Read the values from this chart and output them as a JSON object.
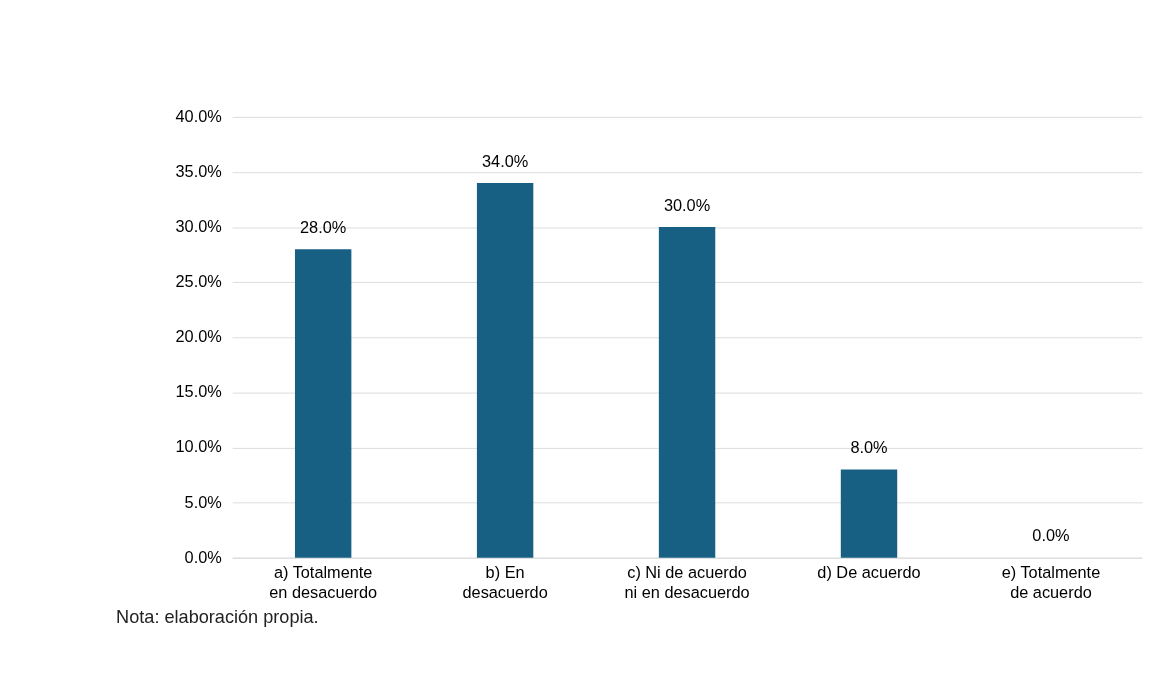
{
  "chart_data": {
    "type": "bar",
    "categories": [
      "a)    Totalmente\nen desacuerdo",
      "b)    En\ndesacuerdo",
      "c)    Ni de acuerdo\nni en desacuerdo",
      "d)    De acuerdo",
      "e)    Totalmente\nde acuerdo"
    ],
    "values": [
      28.0,
      34.0,
      30.0,
      8.0,
      0.0
    ],
    "value_labels": [
      "28.0%",
      "34.0%",
      "30.0%",
      "8.0%",
      "0.0%"
    ],
    "color": "#176083",
    "ylim": [
      0,
      40
    ],
    "yticks": [
      {
        "value": 0,
        "label": "0.0%"
      },
      {
        "value": 5,
        "label": "5.0%"
      },
      {
        "value": 10,
        "label": "10.0%"
      },
      {
        "value": 15,
        "label": "15.0%"
      },
      {
        "value": 20,
        "label": "20.0%"
      },
      {
        "value": 25,
        "label": "25.0%"
      },
      {
        "value": 30,
        "label": "30.0%"
      },
      {
        "value": 35,
        "label": "35.0%"
      },
      {
        "value": 40,
        "label": "40.0%"
      }
    ],
    "grid": "y",
    "annotations": [
      "Nota: elaboración propia."
    ]
  }
}
